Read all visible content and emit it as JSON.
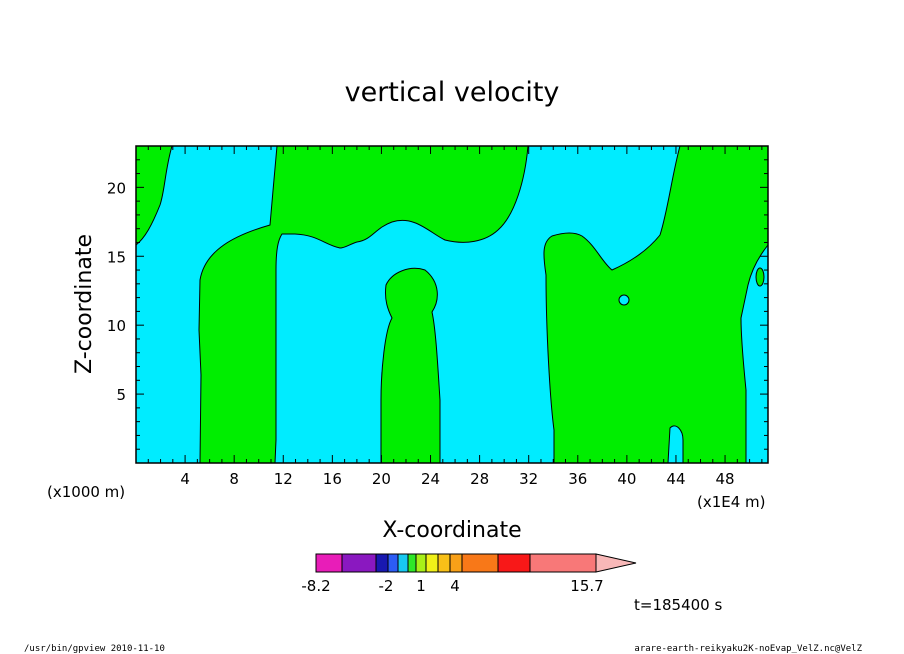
{
  "chart_data": {
    "type": "heatmap",
    "title": "vertical velocity",
    "xlabel": "X-coordinate",
    "ylabel": "Z-coordinate",
    "x_scale_left_label": "(x1000 m)",
    "x_scale_right_label": "(x1E4 m)",
    "xlim": [
      0,
      51.5
    ],
    "ylim": [
      0,
      23
    ],
    "x_ticks": [
      4,
      8,
      12,
      16,
      20,
      24,
      28,
      32,
      36,
      40,
      44,
      48
    ],
    "x_tick_labels": [
      "4",
      "8",
      "12",
      "16",
      "20",
      "24",
      "28",
      "32",
      "36",
      "40",
      "44",
      "48"
    ],
    "y_ticks": [
      5,
      10,
      15,
      20
    ],
    "y_tick_labels": [
      "5",
      "10",
      "15",
      "20"
    ],
    "time_label": "t=185400 s",
    "colorbar": {
      "colors": [
        "#e81db8",
        "#8a18c0",
        "#1818b0",
        "#2c5cf5",
        "#18c8f0",
        "#2ee828",
        "#a8f018",
        "#f0f018",
        "#f8c018",
        "#f8a018",
        "#f87818",
        "#f81818",
        "#f87878",
        "#f8b8b8"
      ],
      "labels": [
        "-8.2",
        "-2",
        "1",
        "4",
        "15.7"
      ]
    },
    "filled_regions": [
      {
        "color": "#00ecff",
        "value_range": "-2 to 0"
      },
      {
        "color": "#00ee00",
        "value_range": "0 to 1"
      }
    ]
  },
  "footer": {
    "left": "/usr/bin/gpview   2010-11-10",
    "right": "arare-earth-reikyaku2K-noEvap_VelZ.nc@VelZ"
  }
}
